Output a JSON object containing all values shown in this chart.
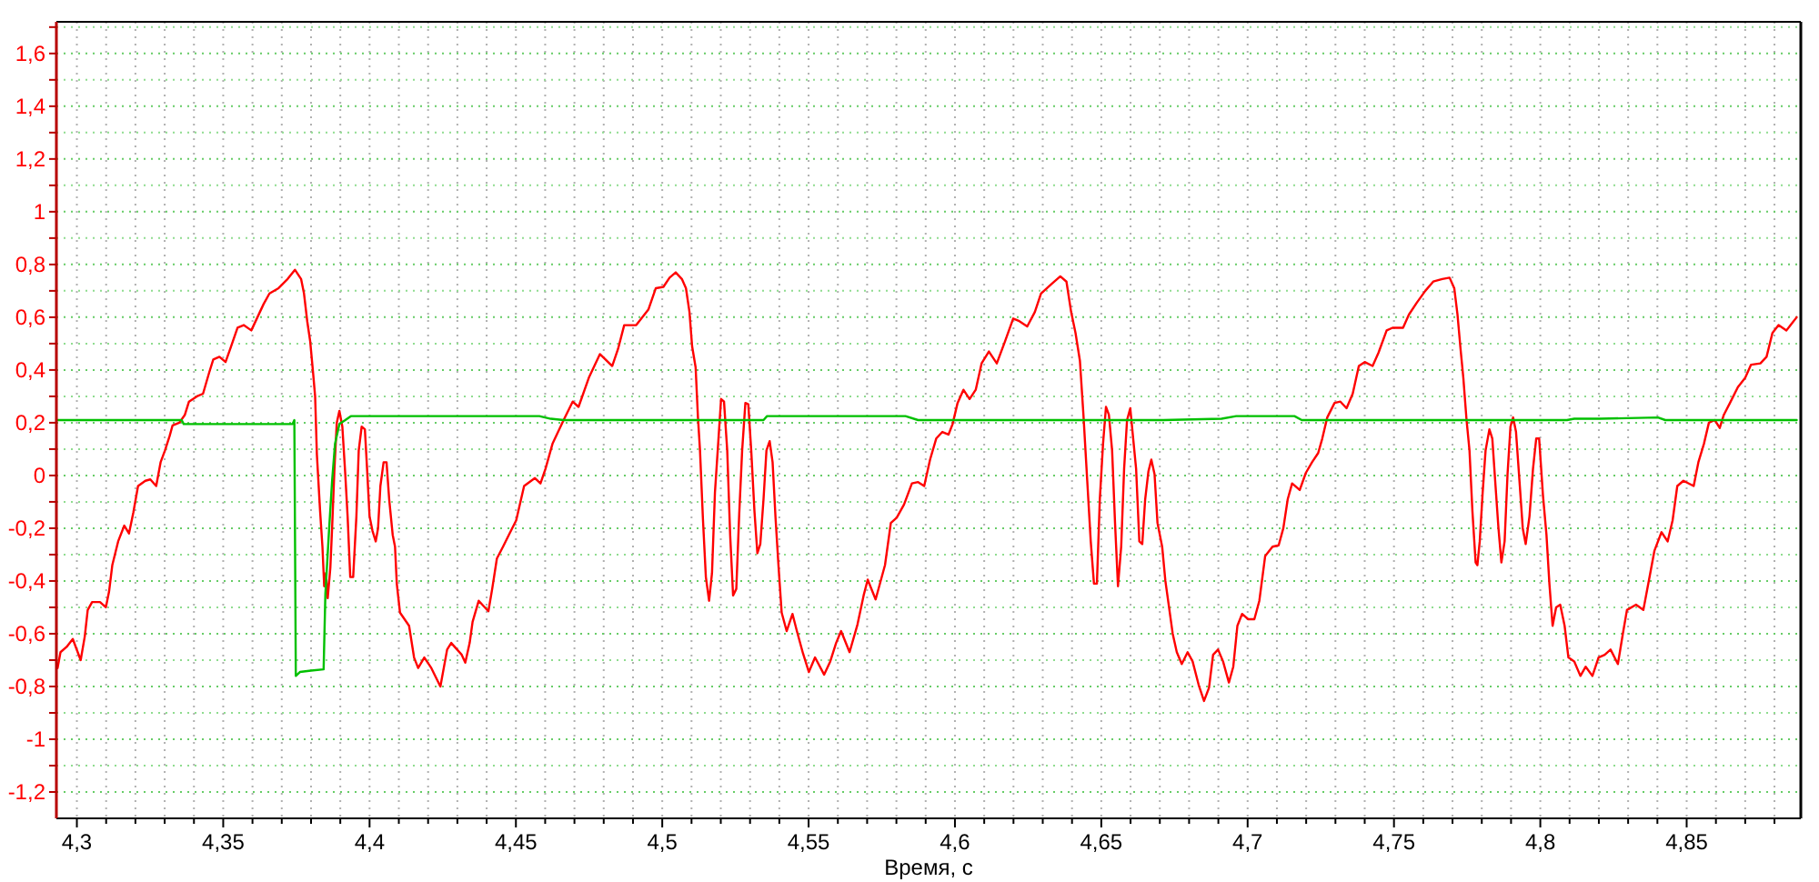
{
  "chart_data": {
    "type": "line",
    "xlabel": "Время, с",
    "xlim": [
      4.293,
      4.889
    ],
    "ylim": [
      -1.3,
      1.72
    ],
    "grid": true,
    "line_style": "solid",
    "xticks": [
      {
        "value": 4.3,
        "label": "4,3"
      },
      {
        "value": 4.31,
        "label": null
      },
      {
        "value": 4.32,
        "label": null
      },
      {
        "value": 4.33,
        "label": null
      },
      {
        "value": 4.34,
        "label": null
      },
      {
        "value": 4.35,
        "label": "4,35"
      },
      {
        "value": 4.36,
        "label": null
      },
      {
        "value": 4.37,
        "label": null
      },
      {
        "value": 4.38,
        "label": null
      },
      {
        "value": 4.39,
        "label": null
      },
      {
        "value": 4.4,
        "label": "4,4"
      },
      {
        "value": 4.41,
        "label": null
      },
      {
        "value": 4.42,
        "label": null
      },
      {
        "value": 4.43,
        "label": null
      },
      {
        "value": 4.44,
        "label": null
      },
      {
        "value": 4.45,
        "label": "4,45"
      },
      {
        "value": 4.46,
        "label": null
      },
      {
        "value": 4.47,
        "label": null
      },
      {
        "value": 4.48,
        "label": null
      },
      {
        "value": 4.49,
        "label": null
      },
      {
        "value": 4.5,
        "label": "4,5"
      },
      {
        "value": 4.51,
        "label": null
      },
      {
        "value": 4.52,
        "label": null
      },
      {
        "value": 4.53,
        "label": null
      },
      {
        "value": 4.54,
        "label": null
      },
      {
        "value": 4.55,
        "label": "4,55"
      },
      {
        "value": 4.56,
        "label": null
      },
      {
        "value": 4.57,
        "label": null
      },
      {
        "value": 4.58,
        "label": null
      },
      {
        "value": 4.59,
        "label": null
      },
      {
        "value": 4.6,
        "label": "4,6"
      },
      {
        "value": 4.61,
        "label": null
      },
      {
        "value": 4.62,
        "label": null
      },
      {
        "value": 4.63,
        "label": null
      },
      {
        "value": 4.64,
        "label": null
      },
      {
        "value": 4.65,
        "label": "4,65"
      },
      {
        "value": 4.66,
        "label": null
      },
      {
        "value": 4.67,
        "label": null
      },
      {
        "value": 4.68,
        "label": null
      },
      {
        "value": 4.69,
        "label": null
      },
      {
        "value": 4.7,
        "label": "4,7"
      },
      {
        "value": 4.71,
        "label": null
      },
      {
        "value": 4.72,
        "label": null
      },
      {
        "value": 4.73,
        "label": null
      },
      {
        "value": 4.74,
        "label": null
      },
      {
        "value": 4.75,
        "label": "4,75"
      },
      {
        "value": 4.76,
        "label": null
      },
      {
        "value": 4.77,
        "label": null
      },
      {
        "value": 4.78,
        "label": null
      },
      {
        "value": 4.79,
        "label": null
      },
      {
        "value": 4.8,
        "label": "4,8"
      },
      {
        "value": 4.81,
        "label": null
      },
      {
        "value": 4.82,
        "label": null
      },
      {
        "value": 4.83,
        "label": null
      },
      {
        "value": 4.84,
        "label": null
      },
      {
        "value": 4.85,
        "label": "4,85"
      },
      {
        "value": 4.86,
        "label": null
      },
      {
        "value": 4.87,
        "label": null
      },
      {
        "value": 4.88,
        "label": null
      }
    ],
    "yticks": [
      {
        "value": -1.2,
        "label": "-1,2"
      },
      {
        "value": -1.1,
        "label": null
      },
      -1,
      {
        "value": -0.9,
        "label": null
      },
      {
        "value": -0.8,
        "label": "-0,8"
      },
      {
        "value": -0.7,
        "label": null
      },
      {
        "value": -0.6,
        "label": "-0,6"
      },
      {
        "value": -0.5,
        "label": null
      },
      {
        "value": -0.4,
        "label": "-0,4"
      },
      {
        "value": -0.3,
        "label": null
      },
      {
        "value": -0.2,
        "label": "-0,2"
      },
      {
        "value": -0.1,
        "label": null
      },
      0,
      {
        "value": 0.1,
        "label": null
      },
      {
        "value": 0.2,
        "label": "0,2"
      },
      {
        "value": 0.3,
        "label": null
      },
      {
        "value": 0.4,
        "label": "0,4"
      },
      {
        "value": 0.5,
        "label": null
      },
      {
        "value": 0.6,
        "label": "0,6"
      },
      {
        "value": 0.7,
        "label": null
      },
      {
        "value": 0.8,
        "label": "0,8"
      },
      {
        "value": 0.9,
        "label": null
      },
      1,
      {
        "value": 1.1,
        "label": null
      },
      {
        "value": 1.2,
        "label": "1,2"
      },
      {
        "value": 1.3,
        "label": null
      },
      {
        "value": 1.4,
        "label": "1,4"
      },
      {
        "value": 1.5,
        "label": null
      },
      {
        "value": 1.6,
        "label": "1,6"
      },
      {
        "value": 1.7,
        "label": null
      }
    ],
    "series": [
      {
        "color": "#ff0000",
        "x": [
          4.2934,
          4.2944,
          4.2965,
          4.2986,
          4.3013,
          4.3027,
          4.3037,
          4.3052,
          4.3079,
          4.3099,
          4.311,
          4.3121,
          4.3141,
          4.3162,
          4.3178,
          4.3193,
          4.3209,
          4.3234,
          4.3251,
          4.3271,
          4.3286,
          4.3301,
          4.3317,
          4.3327,
          4.335,
          4.3369,
          4.3383,
          4.341,
          4.3431,
          4.3452,
          4.3466,
          4.3487,
          4.3508,
          4.3524,
          4.3549,
          4.357,
          4.3596,
          4.3617,
          4.3638,
          4.3658,
          4.3689,
          4.372,
          4.3745,
          4.3766,
          4.3776,
          4.3787,
          4.3797,
          4.3807,
          4.3814,
          4.382,
          4.3831,
          4.3839,
          4.3845,
          4.3851,
          4.3857,
          4.3866,
          4.3872,
          4.388,
          4.3888,
          4.3897,
          4.3907,
          4.3917,
          4.3925,
          4.3934,
          4.3944,
          4.3955,
          4.3963,
          4.3973,
          4.3984,
          4.3992,
          4.4,
          4.401,
          4.4021,
          4.4029,
          4.4037,
          4.4048,
          4.4058,
          4.4067,
          4.4079,
          4.4087,
          4.4093,
          4.4104,
          4.4135,
          4.4152,
          4.4166,
          4.4187,
          4.4211,
          4.4242,
          4.4265,
          4.4279,
          4.4315,
          4.4327,
          4.4342,
          4.4352,
          4.4373,
          4.4406,
          4.4419,
          4.4435,
          4.4456,
          4.4476,
          4.4501,
          4.4528,
          4.4565,
          4.4584,
          4.4601,
          4.4625,
          4.4663,
          4.4694,
          4.4714,
          4.4749,
          4.4787,
          4.4829,
          4.4849,
          4.487,
          4.4911,
          4.4953,
          4.4978,
          4.5004,
          4.5025,
          4.5046,
          4.5067,
          4.5081,
          4.5093,
          4.5102,
          4.5114,
          4.5122,
          4.5129,
          4.5139,
          4.5149,
          4.516,
          4.517,
          4.518,
          4.5191,
          4.5201,
          4.5211,
          4.5222,
          4.5232,
          4.5242,
          4.5253,
          4.5263,
          4.5273,
          4.5284,
          4.5294,
          4.5304,
          4.5315,
          4.5325,
          4.5335,
          4.5346,
          4.5356,
          4.5367,
          4.5377,
          4.5387,
          4.5397,
          4.5408,
          4.5425,
          4.5445,
          4.546,
          4.5481,
          4.5501,
          4.5522,
          4.5553,
          4.5574,
          4.5594,
          4.5611,
          4.564,
          4.5667,
          4.5688,
          4.5702,
          4.5729,
          4.5761,
          4.5781,
          4.5801,
          4.5826,
          4.5853,
          4.5874,
          4.5895,
          4.5915,
          4.5936,
          4.5957,
          4.5978,
          4.5992,
          4.6009,
          4.6029,
          4.605,
          4.6071,
          4.6091,
          4.6116,
          4.6143,
          4.617,
          4.6199,
          4.622,
          4.6247,
          4.6273,
          4.6294,
          4.6329,
          4.636,
          4.6381,
          4.6397,
          4.6412,
          4.6427,
          4.6439,
          4.6452,
          4.6464,
          4.6475,
          4.6485,
          4.6495,
          4.6506,
          4.6516,
          4.6526,
          4.6537,
          4.6547,
          4.6557,
          4.6568,
          4.6578,
          4.6588,
          4.6599,
          4.6609,
          4.6619,
          4.663,
          4.664,
          4.665,
          4.6661,
          4.6671,
          4.6682,
          4.6692,
          4.6708,
          4.6719,
          4.6744,
          4.6758,
          4.6775,
          4.6795,
          4.6812,
          4.6833,
          4.6851,
          4.6868,
          4.6882,
          4.6899,
          4.6916,
          4.6936,
          4.6951,
          4.6965,
          4.6981,
          4.7002,
          4.7023,
          4.704,
          4.706,
          4.7085,
          4.7106,
          4.7122,
          4.7137,
          4.7152,
          4.7178,
          4.7199,
          4.722,
          4.7241,
          4.7255,
          4.7272,
          4.7297,
          4.7317,
          4.7338,
          4.7359,
          4.738,
          4.74,
          4.7427,
          4.7447,
          4.7475,
          4.7495,
          4.7531,
          4.7551,
          4.7578,
          4.7607,
          4.7634,
          4.7665,
          4.769,
          4.7706,
          4.7717,
          4.7727,
          4.7737,
          4.7748,
          4.7758,
          4.7768,
          4.7779,
          4.7785,
          4.7793,
          4.7803,
          4.7813,
          4.7826,
          4.7836,
          4.7847,
          4.7857,
          4.7867,
          4.7878,
          4.7888,
          4.7898,
          4.7907,
          4.7917,
          4.793,
          4.794,
          4.795,
          4.7963,
          4.7975,
          4.7986,
          4.7996,
          4.8009,
          4.8021,
          4.8031,
          4.8042,
          4.8054,
          4.8068,
          4.8083,
          4.8096,
          4.8116,
          4.8137,
          4.8155,
          4.8178,
          4.8199,
          4.822,
          4.824,
          4.8265,
          4.8282,
          4.8296,
          4.8327,
          4.8352,
          4.8369,
          4.839,
          4.8414,
          4.8435,
          4.8452,
          4.8468,
          4.8489,
          4.8524,
          4.854,
          4.8559,
          4.8576,
          4.8596,
          4.8613,
          4.8627,
          4.8648,
          4.8675,
          4.87,
          4.872,
          4.8752,
          4.8773,
          4.8793,
          4.8814,
          4.8841,
          4.8855,
          4.8876
        ],
        "values": [
          -0.73,
          -0.67,
          -0.65,
          -0.62,
          -0.7,
          -0.61,
          -0.51,
          -0.48,
          -0.48,
          -0.5,
          -0.44,
          -0.34,
          -0.25,
          -0.19,
          -0.22,
          -0.14,
          -0.04,
          -0.02,
          -0.015,
          -0.04,
          0.05,
          0.095,
          0.15,
          0.19,
          0.2,
          0.23,
          0.28,
          0.3,
          0.31,
          0.39,
          0.44,
          0.45,
          0.43,
          0.48,
          0.56,
          0.57,
          0.55,
          0.6,
          0.65,
          0.69,
          0.71,
          0.745,
          0.78,
          0.745,
          0.69,
          0.585,
          0.51,
          0.39,
          0.3,
          0.08,
          -0.135,
          -0.27,
          -0.42,
          -0.37,
          -0.465,
          -0.35,
          -0.2,
          0.025,
          0.2,
          0.245,
          0.185,
          0.005,
          -0.155,
          -0.385,
          -0.385,
          -0.155,
          0.095,
          0.185,
          0.175,
          0.015,
          -0.155,
          -0.21,
          -0.25,
          -0.2,
          -0.04,
          0.05,
          0.05,
          -0.09,
          -0.225,
          -0.27,
          -0.41,
          -0.52,
          -0.57,
          -0.69,
          -0.73,
          -0.69,
          -0.73,
          -0.8,
          -0.66,
          -0.635,
          -0.68,
          -0.71,
          -0.635,
          -0.555,
          -0.475,
          -0.515,
          -0.43,
          -0.315,
          -0.27,
          -0.225,
          -0.17,
          -0.04,
          -0.01,
          -0.03,
          0.025,
          0.12,
          0.21,
          0.28,
          0.26,
          0.37,
          0.46,
          0.415,
          0.48,
          0.57,
          0.57,
          0.63,
          0.71,
          0.715,
          0.75,
          0.77,
          0.745,
          0.71,
          0.62,
          0.49,
          0.41,
          0.22,
          0.095,
          -0.165,
          -0.385,
          -0.475,
          -0.37,
          -0.065,
          0.12,
          0.29,
          0.28,
          0.095,
          -0.225,
          -0.455,
          -0.43,
          -0.145,
          0.095,
          0.275,
          0.27,
          0.095,
          -0.135,
          -0.295,
          -0.26,
          -0.09,
          0.095,
          0.13,
          0.05,
          -0.16,
          -0.34,
          -0.52,
          -0.59,
          -0.525,
          -0.59,
          -0.675,
          -0.745,
          -0.69,
          -0.755,
          -0.705,
          -0.635,
          -0.59,
          -0.67,
          -0.565,
          -0.455,
          -0.395,
          -0.47,
          -0.34,
          -0.18,
          -0.16,
          -0.11,
          -0.03,
          -0.025,
          -0.04,
          0.06,
          0.14,
          0.165,
          0.155,
          0.195,
          0.275,
          0.325,
          0.29,
          0.325,
          0.425,
          0.47,
          0.425,
          0.505,
          0.595,
          0.585,
          0.565,
          0.62,
          0.69,
          0.725,
          0.755,
          0.735,
          0.62,
          0.54,
          0.435,
          0.23,
          -0.02,
          -0.25,
          -0.41,
          -0.41,
          -0.09,
          0.12,
          0.26,
          0.23,
          0.095,
          -0.18,
          -0.42,
          -0.27,
          0.025,
          0.21,
          0.255,
          0.14,
          0.025,
          -0.25,
          -0.26,
          -0.09,
          0.015,
          0.06,
          0.005,
          -0.18,
          -0.27,
          -0.4,
          -0.6,
          -0.67,
          -0.715,
          -0.67,
          -0.705,
          -0.795,
          -0.855,
          -0.805,
          -0.68,
          -0.66,
          -0.705,
          -0.785,
          -0.725,
          -0.57,
          -0.525,
          -0.545,
          -0.545,
          -0.475,
          -0.305,
          -0.27,
          -0.265,
          -0.2,
          -0.09,
          -0.03,
          -0.055,
          0.01,
          0.05,
          0.085,
          0.14,
          0.22,
          0.275,
          0.28,
          0.255,
          0.31,
          0.415,
          0.43,
          0.415,
          0.465,
          0.55,
          0.56,
          0.56,
          0.61,
          0.655,
          0.7,
          0.735,
          0.745,
          0.75,
          0.71,
          0.61,
          0.485,
          0.37,
          0.21,
          0.095,
          -0.135,
          -0.33,
          -0.34,
          -0.25,
          -0.065,
          0.095,
          0.175,
          0.14,
          -0.04,
          -0.2,
          -0.33,
          -0.25,
          0.005,
          0.185,
          0.22,
          0.165,
          -0.04,
          -0.2,
          -0.26,
          -0.155,
          0.025,
          0.14,
          0.14,
          -0.075,
          -0.225,
          -0.41,
          -0.57,
          -0.5,
          -0.49,
          -0.57,
          -0.69,
          -0.705,
          -0.76,
          -0.725,
          -0.76,
          -0.69,
          -0.68,
          -0.66,
          -0.715,
          -0.6,
          -0.51,
          -0.49,
          -0.51,
          -0.41,
          -0.285,
          -0.215,
          -0.25,
          -0.17,
          -0.04,
          -0.02,
          -0.04,
          0.05,
          0.12,
          0.2,
          0.21,
          0.18,
          0.23,
          0.275,
          0.335,
          0.37,
          0.42,
          0.425,
          0.45,
          0.54,
          0.57,
          0.55,
          0.57,
          0.6
        ]
      },
      {
        "color": "#00c000",
        "x": [
          4.2934,
          4.3358,
          4.3365,
          4.3737,
          4.3743,
          4.3748,
          4.3762,
          4.38,
          4.3843,
          4.3849,
          4.3862,
          4.3872,
          4.3882,
          4.3897,
          4.3917,
          4.3936,
          4.458,
          4.4619,
          4.4663,
          4.5346,
          4.5358,
          4.5831,
          4.5874,
          4.6712,
          4.6911,
          4.6961,
          4.716,
          4.7185,
          4.8091,
          4.8116,
          4.8203,
          4.8402,
          4.8427,
          4.8876
        ],
        "values": [
          0.21,
          0.21,
          0.195,
          0.195,
          0.21,
          -0.76,
          -0.745,
          -0.74,
          -0.735,
          -0.45,
          -0.2,
          -0.02,
          0.12,
          0.195,
          0.21,
          0.225,
          0.225,
          0.215,
          0.21,
          0.21,
          0.225,
          0.225,
          0.21,
          0.21,
          0.215,
          0.225,
          0.225,
          0.21,
          0.21,
          0.215,
          0.215,
          0.22,
          0.21,
          0.21
        ]
      }
    ]
  }
}
